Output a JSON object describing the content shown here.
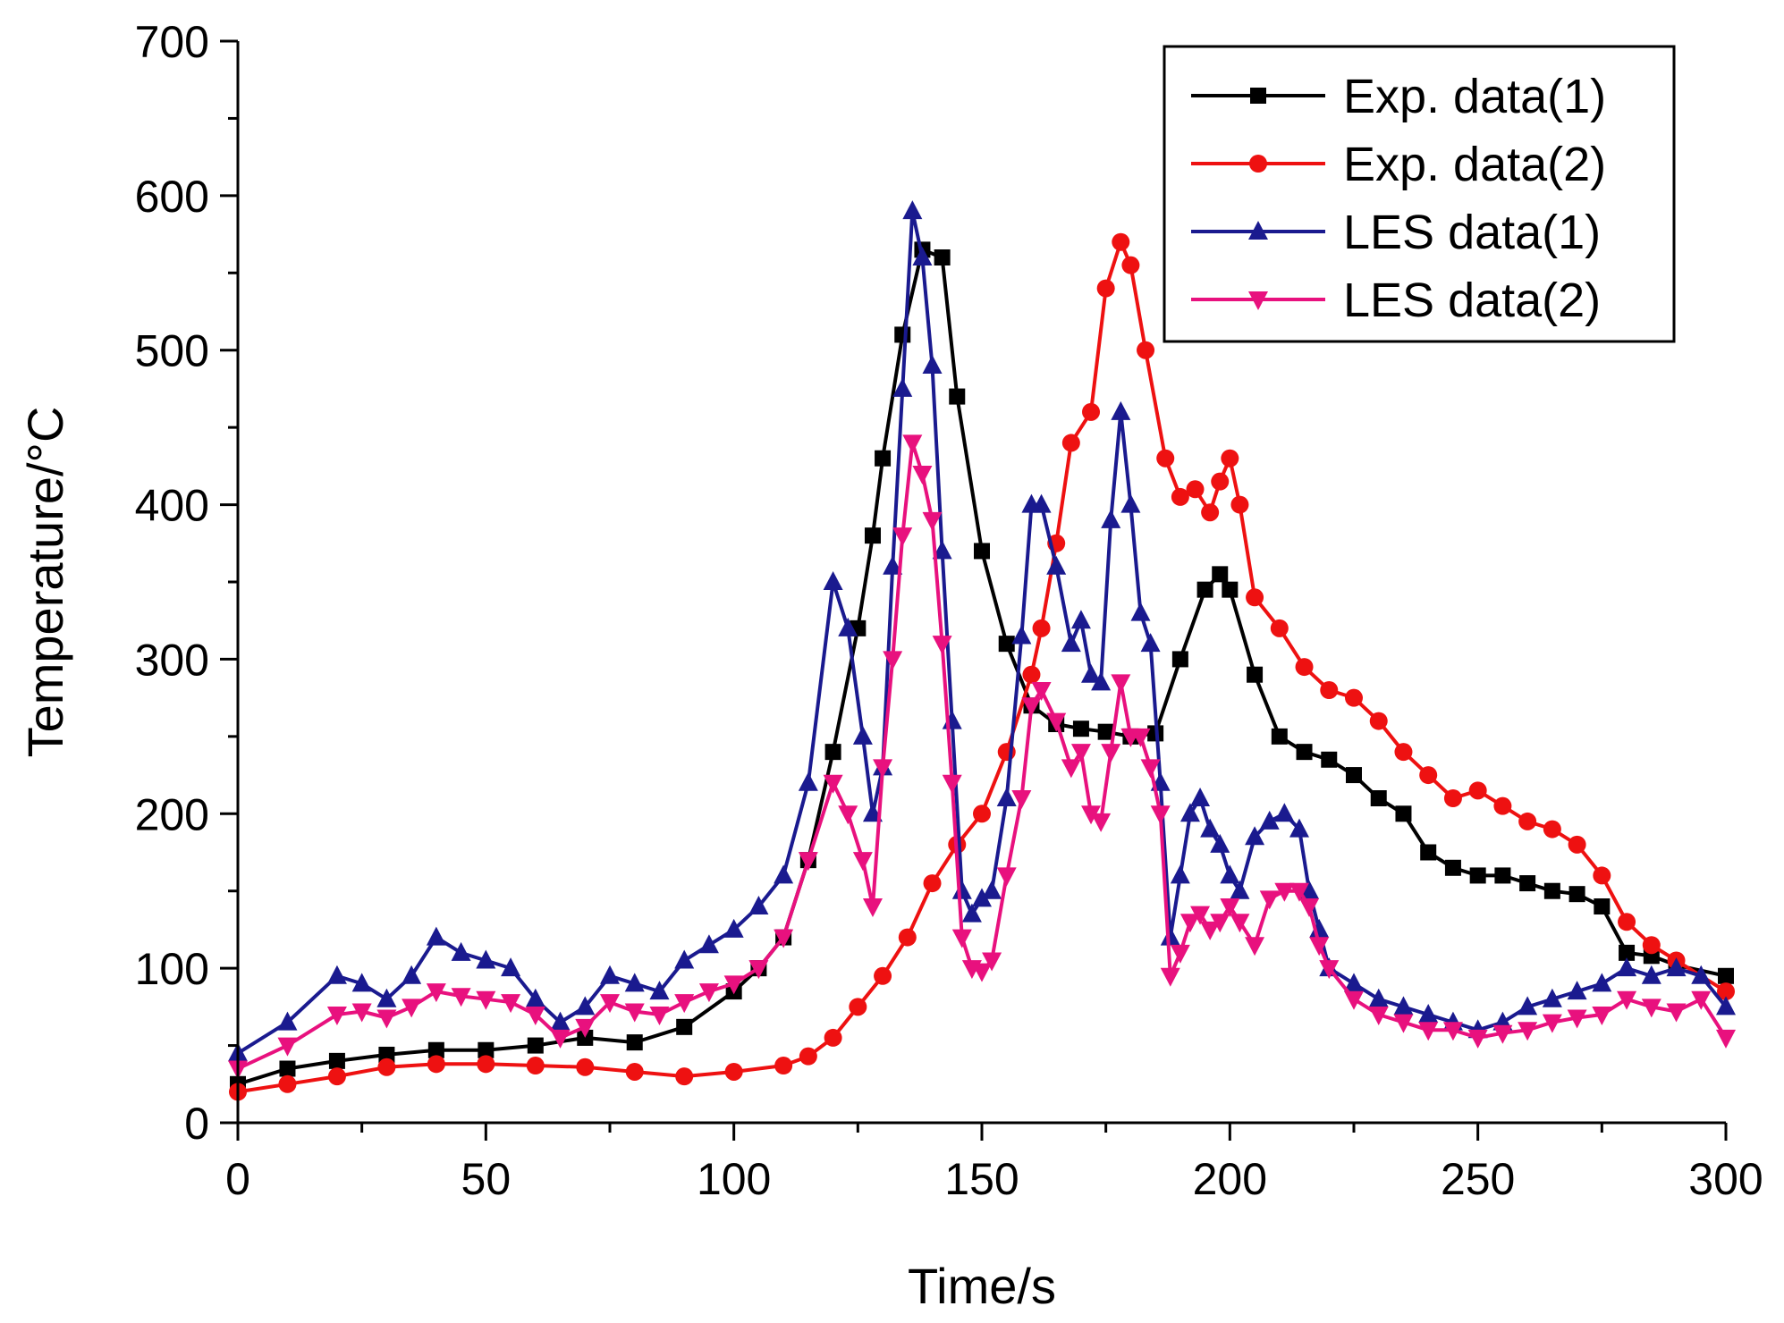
{
  "chart_data": {
    "type": "line",
    "title": "",
    "xlabel": "Time/s",
    "ylabel": "Temperature/°C",
    "xlim": [
      0,
      300
    ],
    "ylim": [
      0,
      700
    ],
    "xticks": [
      0,
      50,
      100,
      150,
      200,
      250,
      300
    ],
    "yticks": [
      0,
      100,
      200,
      300,
      400,
      500,
      600,
      700
    ],
    "legend_position": "top-right",
    "grid": false,
    "series": [
      {
        "name": "Exp. data(1)",
        "color": "#000000",
        "marker": "square",
        "x": [
          0,
          10,
          20,
          30,
          40,
          50,
          60,
          70,
          80,
          90,
          100,
          105,
          110,
          115,
          120,
          125,
          128,
          130,
          134,
          138,
          142,
          145,
          150,
          155,
          160,
          165,
          170,
          175,
          180,
          185,
          190,
          195,
          198,
          200,
          205,
          210,
          215,
          220,
          225,
          230,
          235,
          240,
          245,
          250,
          255,
          260,
          265,
          270,
          275,
          280,
          285,
          290,
          300
        ],
        "y": [
          25,
          35,
          40,
          44,
          47,
          47,
          50,
          55,
          52,
          62,
          85,
          100,
          120,
          170,
          240,
          320,
          380,
          430,
          510,
          565,
          560,
          470,
          370,
          310,
          270,
          258,
          255,
          253,
          250,
          252,
          300,
          345,
          355,
          345,
          290,
          250,
          240,
          235,
          225,
          210,
          200,
          175,
          165,
          160,
          160,
          155,
          150,
          148,
          140,
          110,
          108,
          102,
          95
        ]
      },
      {
        "name": "Exp. data(2)",
        "color": "#ee1111",
        "marker": "circle",
        "x": [
          0,
          10,
          20,
          30,
          40,
          50,
          60,
          70,
          80,
          90,
          100,
          110,
          115,
          120,
          125,
          130,
          135,
          140,
          145,
          150,
          155,
          160,
          162,
          165,
          168,
          172,
          175,
          178,
          180,
          183,
          187,
          190,
          193,
          196,
          198,
          200,
          202,
          205,
          210,
          215,
          220,
          225,
          230,
          235,
          240,
          245,
          250,
          255,
          260,
          265,
          270,
          275,
          280,
          285,
          290,
          300
        ],
        "y": [
          20,
          25,
          30,
          36,
          38,
          38,
          37,
          36,
          33,
          30,
          33,
          37,
          43,
          55,
          75,
          95,
          120,
          155,
          180,
          200,
          240,
          290,
          320,
          375,
          440,
          460,
          540,
          570,
          555,
          500,
          430,
          405,
          410,
          395,
          415,
          430,
          400,
          340,
          320,
          295,
          280,
          275,
          260,
          240,
          225,
          210,
          215,
          205,
          195,
          190,
          180,
          160,
          130,
          115,
          105,
          85
        ]
      },
      {
        "name": "LES data(1)",
        "color": "#1a1a8f",
        "marker": "triangle-up",
        "x": [
          0,
          10,
          20,
          25,
          30,
          35,
          40,
          45,
          50,
          55,
          60,
          65,
          70,
          75,
          80,
          85,
          90,
          95,
          100,
          105,
          110,
          115,
          120,
          123,
          126,
          128,
          130,
          132,
          134,
          136,
          138,
          140,
          142,
          144,
          146,
          148,
          150,
          152,
          155,
          158,
          160,
          162,
          165,
          168,
          170,
          172,
          174,
          176,
          178,
          180,
          182,
          184,
          186,
          188,
          190,
          192,
          194,
          196,
          198,
          200,
          202,
          205,
          208,
          211,
          214,
          216,
          218,
          220,
          225,
          230,
          235,
          240,
          245,
          250,
          255,
          260,
          265,
          270,
          275,
          280,
          285,
          290,
          295,
          300
        ],
        "y": [
          45,
          65,
          95,
          90,
          80,
          95,
          120,
          110,
          105,
          100,
          80,
          65,
          75,
          95,
          90,
          85,
          105,
          115,
          125,
          140,
          160,
          220,
          350,
          320,
          250,
          200,
          230,
          360,
          475,
          590,
          560,
          490,
          370,
          260,
          150,
          135,
          145,
          150,
          210,
          315,
          400,
          400,
          360,
          310,
          325,
          290,
          285,
          390,
          460,
          400,
          330,
          310,
          220,
          120,
          160,
          200,
          210,
          190,
          180,
          160,
          150,
          185,
          195,
          200,
          190,
          150,
          125,
          100,
          90,
          80,
          75,
          70,
          65,
          60,
          65,
          75,
          80,
          85,
          90,
          100,
          95,
          100,
          95,
          75
        ]
      },
      {
        "name": "LES data(2)",
        "color": "#e8117e",
        "marker": "triangle-down",
        "x": [
          0,
          10,
          20,
          25,
          30,
          35,
          40,
          45,
          50,
          55,
          60,
          65,
          70,
          75,
          80,
          85,
          90,
          95,
          100,
          105,
          110,
          115,
          120,
          123,
          126,
          128,
          130,
          132,
          134,
          136,
          138,
          140,
          142,
          144,
          146,
          148,
          150,
          152,
          155,
          158,
          160,
          162,
          165,
          168,
          170,
          172,
          174,
          176,
          178,
          180,
          182,
          184,
          186,
          188,
          190,
          192,
          194,
          196,
          198,
          200,
          202,
          205,
          208,
          211,
          214,
          216,
          218,
          220,
          225,
          230,
          235,
          240,
          245,
          250,
          255,
          260,
          265,
          270,
          275,
          280,
          285,
          290,
          295,
          300
        ],
        "y": [
          35,
          50,
          70,
          72,
          68,
          75,
          85,
          82,
          80,
          78,
          70,
          55,
          62,
          78,
          72,
          70,
          78,
          85,
          90,
          100,
          120,
          170,
          220,
          200,
          170,
          140,
          230,
          300,
          380,
          440,
          420,
          390,
          310,
          220,
          120,
          100,
          98,
          105,
          160,
          210,
          270,
          280,
          260,
          230,
          240,
          200,
          195,
          240,
          285,
          250,
          250,
          230,
          200,
          95,
          110,
          130,
          135,
          125,
          130,
          140,
          130,
          115,
          145,
          150,
          150,
          140,
          115,
          100,
          80,
          70,
          65,
          60,
          60,
          55,
          58,
          60,
          65,
          68,
          70,
          80,
          75,
          72,
          80,
          55
        ]
      }
    ]
  }
}
